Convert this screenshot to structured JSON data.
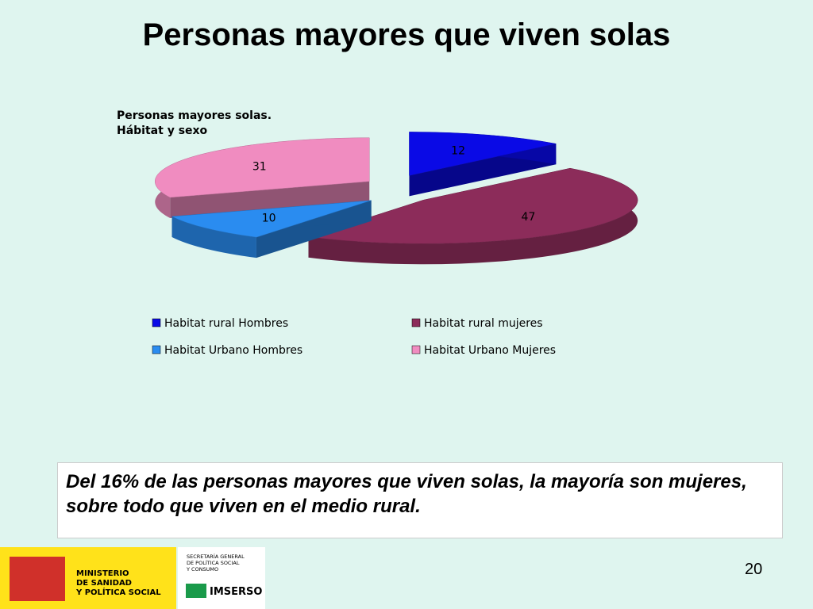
{
  "slide_title": "Personas mayores que viven solas",
  "chart_data": {
    "type": "pie",
    "title_lines": [
      "Personas mayores solas.",
      "Hábitat y sexo"
    ],
    "series": [
      {
        "name": "Habitat rural Hombres",
        "color": "#0a0ae6",
        "values": [
          12
        ]
      },
      {
        "name": "Habitat rural mujeres",
        "color": "#8c2c5a",
        "values": [
          47
        ]
      },
      {
        "name": "Habitat Urbano Hombres",
        "color": "#2a8cf0",
        "values": [
          10
        ]
      },
      {
        "name": "Habitat Urbano Mujeres",
        "color": "#f08cc0",
        "values": [
          31
        ]
      }
    ]
  },
  "note": "Del 16% de las personas mayores que viven solas,  la mayoría son mujeres, sobre todo que viven en el medio rural.",
  "page_number": "20",
  "footer": {
    "ministry": [
      "MINISTERIO",
      "DE SANIDAD",
      "Y POLÍTICA SOCIAL"
    ],
    "secretariat": [
      "SECRETARÍA GENERAL",
      "DE POLÍTICA SOCIAL",
      "Y CONSUMO"
    ],
    "agency": "IMSERSO"
  }
}
